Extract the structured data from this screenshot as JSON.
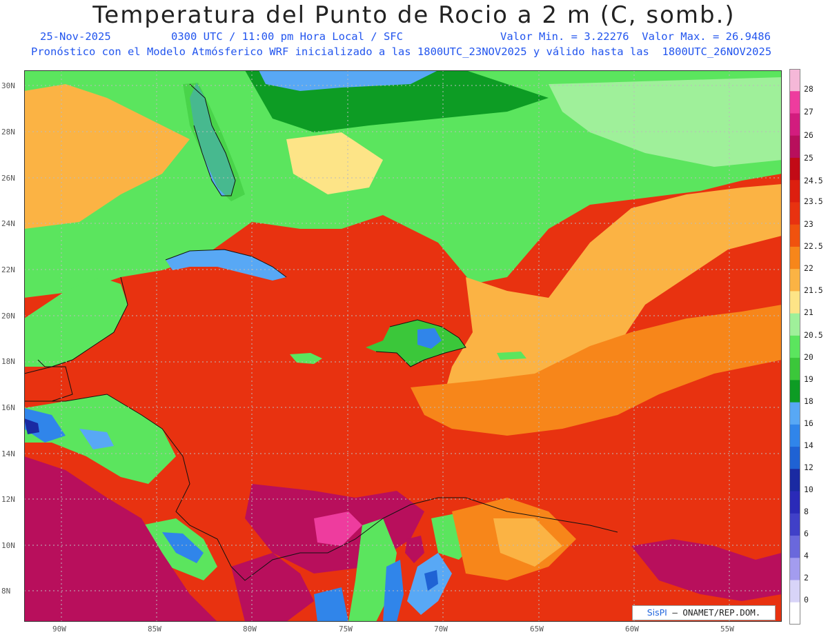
{
  "header": {
    "title": "Temperatura del Punto de Rocio a 2 m (C, somb.)",
    "date": "25-Nov-2025",
    "time": "0300 UTC / 11:00 pm Hora Local / SFC",
    "minmax": "Valor Min. = 3.22276  Valor Max. = 26.9486",
    "subtitle": "Pronóstico con el Modelo Atmósferico WRF inicializado a las 1800UTC_23NOV2025 y válido hasta las  1800UTC_26NOV2025"
  },
  "axes": {
    "lat_labels": [
      "30N",
      "28N",
      "26N",
      "24N",
      "22N",
      "20N",
      "18N",
      "16N",
      "14N",
      "12N",
      "10N",
      "8N"
    ],
    "lon_labels": [
      "90W",
      "85W",
      "80W",
      "75W",
      "70W",
      "65W",
      "60W",
      "55W"
    ]
  },
  "legend": {
    "labels": [
      "28",
      "27",
      "26",
      "25",
      "24.5",
      "23.5",
      "23",
      "22.5",
      "22",
      "21.5",
      "21",
      "20.5",
      "20",
      "19",
      "18",
      "16",
      "14",
      "12",
      "10",
      "8",
      "6",
      "4",
      "2",
      "0"
    ],
    "colors": [
      "#f5b8d8",
      "#ee3c9e",
      "#d21c7e",
      "#b80f5c",
      "#c20a16",
      "#dd1f0f",
      "#e83210",
      "#f0520e",
      "#f7861a",
      "#fbb344",
      "#fde487",
      "#9ff09a",
      "#5be55e",
      "#3bc73a",
      "#0d9c24",
      "#58a8f5",
      "#3085ea",
      "#1f62d4",
      "#1a2aa2",
      "#2a2ab8",
      "#4040c8",
      "#6a68dc",
      "#a39cef",
      "#d8d4f8",
      "#ffffff"
    ]
  },
  "credit": {
    "logo": "SisPI",
    "text": " – ONAMET/REP.DOM."
  }
}
